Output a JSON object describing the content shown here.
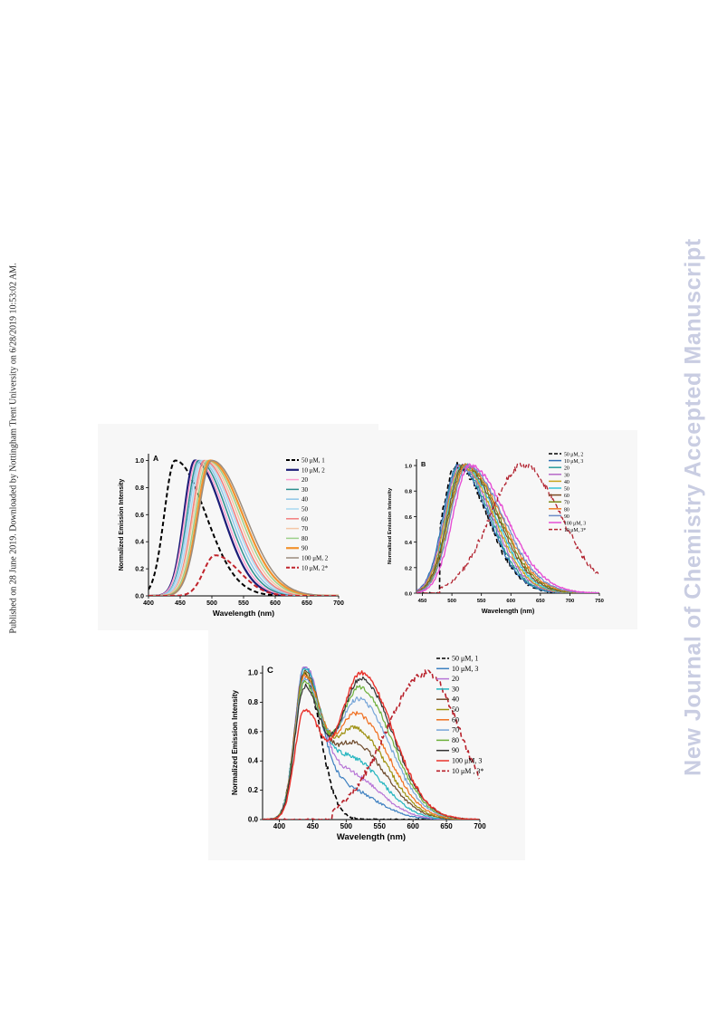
{
  "page": {
    "sidebar_text": "Published on 28 June 2019. Downloaded by Nottingham Trent University on 6/28/2019 10:53:02 AM.",
    "watermark": "New Journal of Chemistry Accepted Manuscript"
  },
  "chart_data": [
    {
      "type": "line",
      "panel": "A",
      "xlabel": "Wavelength (nm)",
      "ylabel": "Normalized Emission Intensity",
      "xlim": [
        400,
        700
      ],
      "ylim": [
        0,
        1.05
      ],
      "xticks": [
        400,
        450,
        500,
        550,
        600,
        650,
        700
      ],
      "yticks": [
        "0.0",
        "0.2",
        "0.4",
        "0.6",
        "0.8",
        "1.0"
      ],
      "legend_position": "top-right",
      "series": [
        {
          "name": "50 μM, 1",
          "color": "#000000",
          "dash": true,
          "width": 2,
          "peak": 442,
          "sl": 17,
          "sr": 48,
          "amp": 1.0
        },
        {
          "name": "10 μM, 2",
          "color": "#1b1d78",
          "dash": false,
          "width": 2.2,
          "peak": 473,
          "sl": 17,
          "sr": 44,
          "amp": 1.0
        },
        {
          "name": "20",
          "color": "#ff9fd0",
          "dash": false,
          "width": 1.5,
          "peak": 476,
          "sl": 18,
          "sr": 45,
          "amp": 1.0
        },
        {
          "name": "30",
          "color": "#2c8e8e",
          "dash": false,
          "width": 1.5,
          "peak": 479,
          "sl": 18,
          "sr": 46,
          "amp": 1.0
        },
        {
          "name": "40",
          "color": "#8ec6e8",
          "dash": false,
          "width": 1.5,
          "peak": 482,
          "sl": 19,
          "sr": 47,
          "amp": 1.0
        },
        {
          "name": "50",
          "color": "#a9d8f0",
          "dash": false,
          "width": 1.5,
          "peak": 485,
          "sl": 19,
          "sr": 48,
          "amp": 1.0
        },
        {
          "name": "60",
          "color": "#f37d7d",
          "dash": false,
          "width": 1.5,
          "peak": 488,
          "sl": 19,
          "sr": 48,
          "amp": 1.0
        },
        {
          "name": "70",
          "color": "#f4c6a6",
          "dash": false,
          "width": 1.5,
          "peak": 491,
          "sl": 20,
          "sr": 49,
          "amp": 1.0
        },
        {
          "name": "80",
          "color": "#9cd08a",
          "dash": false,
          "width": 1.5,
          "peak": 494,
          "sl": 20,
          "sr": 50,
          "amp": 1.0
        },
        {
          "name": "90",
          "color": "#f2932f",
          "dash": false,
          "width": 2.2,
          "peak": 497,
          "sl": 20,
          "sr": 51,
          "amp": 1.0
        },
        {
          "name": "100 μM, 2",
          "color": "#9a8c7e",
          "dash": false,
          "width": 1.5,
          "peak": 500,
          "sl": 21,
          "sr": 52,
          "amp": 1.0
        },
        {
          "name": "10 μM, 2*",
          "color": "#c0232b",
          "dash": true,
          "width": 2,
          "peak": 505,
          "sl": 18,
          "sr": 38,
          "amp": 0.3
        }
      ]
    },
    {
      "type": "line",
      "panel": "B",
      "xlabel": "Wavelength (nm)",
      "ylabel": "Normalized Emission Intensity",
      "xlim": [
        440,
        750
      ],
      "ylim": [
        0,
        1.05
      ],
      "xticks": [
        450,
        500,
        550,
        600,
        650,
        700,
        750
      ],
      "yticks": [
        "0.0",
        "0.2",
        "0.4",
        "0.6",
        "0.8",
        "1.0"
      ],
      "legend_position": "top-right",
      "series": [
        {
          "name": "50 μM, 2",
          "color": "#000000",
          "dash": true,
          "width": 1.6,
          "peak": 508,
          "sl": 25,
          "sr": 52,
          "amp": 1.0
        },
        {
          "name": "10 μM, 3",
          "color": "#2f6fb7",
          "dash": false,
          "width": 1.2,
          "peak": 510,
          "sl": 25,
          "sr": 52,
          "amp": 1.0
        },
        {
          "name": "20",
          "color": "#2a9c9c",
          "dash": false,
          "width": 1.2,
          "peak": 512,
          "sl": 25,
          "sr": 53,
          "amp": 1.0
        },
        {
          "name": "30",
          "color": "#b668c8",
          "dash": false,
          "width": 1.2,
          "peak": 514,
          "sl": 26,
          "sr": 54,
          "amp": 1.0
        },
        {
          "name": "40",
          "color": "#c7a51c",
          "dash": false,
          "width": 1.2,
          "peak": 516,
          "sl": 26,
          "sr": 55,
          "amp": 1.0
        },
        {
          "name": "50",
          "color": "#37c3d6",
          "dash": false,
          "width": 1.2,
          "peak": 518,
          "sl": 26,
          "sr": 56,
          "amp": 1.0
        },
        {
          "name": "60",
          "color": "#7b4a23",
          "dash": false,
          "width": 1.2,
          "peak": 520,
          "sl": 27,
          "sr": 57,
          "amp": 1.0
        },
        {
          "name": "70",
          "color": "#7c8a18",
          "dash": false,
          "width": 1.2,
          "peak": 522,
          "sl": 27,
          "sr": 58,
          "amp": 1.0
        },
        {
          "name": "80",
          "color": "#ee7d27",
          "dash": false,
          "width": 1.2,
          "peak": 524,
          "sl": 27,
          "sr": 59,
          "amp": 1.0
        },
        {
          "name": "90",
          "color": "#6d8cc8",
          "dash": false,
          "width": 1.2,
          "peak": 526,
          "sl": 28,
          "sr": 60,
          "amp": 1.0
        },
        {
          "name": "100 μM, 3",
          "color": "#e64fd4",
          "dash": false,
          "width": 1.4,
          "peak": 530,
          "sl": 28,
          "sr": 62,
          "amp": 1.0
        },
        {
          "name": "10 μM, 3*",
          "color": "#b22330",
          "dash": true,
          "width": 1.3,
          "peak": 620,
          "sl": 55,
          "sr": 65,
          "amp": 1.0
        }
      ]
    },
    {
      "type": "line",
      "panel": "C",
      "xlabel": "Wavelength (nm)",
      "ylabel": "Normalized Emission Intensity",
      "xlim": [
        375,
        700
      ],
      "ylim": [
        0,
        1.05
      ],
      "xticks": [
        400,
        450,
        500,
        550,
        600,
        650,
        700
      ],
      "yticks": [
        "0.0",
        "0.2",
        "0.4",
        "0.6",
        "0.8",
        "1.0"
      ],
      "legend_position": "top-right",
      "series": [
        {
          "name": "50 μM, 1",
          "color": "#000000",
          "dash": true,
          "width": 1.6,
          "p1": 437,
          "a1": 1.0,
          "p2": 490,
          "a2": 0.0
        },
        {
          "name": "10 μM, 3",
          "color": "#3c7fc0",
          "dash": false,
          "width": 1.2,
          "p1": 437,
          "a1": 1.0,
          "p2": 495,
          "a2": 0.22
        },
        {
          "name": "20",
          "color": "#b774d6",
          "dash": false,
          "width": 1.2,
          "p1": 437,
          "a1": 1.0,
          "p2": 500,
          "a2": 0.32
        },
        {
          "name": "30",
          "color": "#24b5bf",
          "dash": false,
          "width": 1.2,
          "p1": 437,
          "a1": 0.98,
          "p2": 505,
          "a2": 0.42
        },
        {
          "name": "40",
          "color": "#6e4a2b",
          "dash": false,
          "width": 1.2,
          "p1": 437,
          "a1": 0.97,
          "p2": 510,
          "a2": 0.52
        },
        {
          "name": "50",
          "color": "#9e9010",
          "dash": false,
          "width": 1.2,
          "p1": 437,
          "a1": 0.95,
          "p2": 512,
          "a2": 0.62
        },
        {
          "name": "60",
          "color": "#f06e1e",
          "dash": false,
          "width": 1.2,
          "p1": 437,
          "a1": 0.94,
          "p2": 515,
          "a2": 0.72
        },
        {
          "name": "70",
          "color": "#76a5d8",
          "dash": false,
          "width": 1.2,
          "p1": 437,
          "a1": 0.92,
          "p2": 518,
          "a2": 0.82
        },
        {
          "name": "80",
          "color": "#6cb03a",
          "dash": false,
          "width": 1.2,
          "p1": 437,
          "a1": 0.9,
          "p2": 520,
          "a2": 0.9
        },
        {
          "name": "90",
          "color": "#333333",
          "dash": false,
          "width": 1.2,
          "p1": 437,
          "a1": 0.88,
          "p2": 522,
          "a2": 0.96
        },
        {
          "name": "100 μM, 3",
          "color": "#e8322c",
          "dash": false,
          "width": 1.4,
          "p1": 437,
          "a1": 0.72,
          "p2": 522,
          "a2": 1.0
        },
        {
          "name": "10 μM , 3*",
          "color": "#b8202a",
          "dash": true,
          "width": 1.6,
          "p1": 620,
          "a1": 1.0,
          "p2": 620,
          "a2": 0.0
        }
      ]
    }
  ]
}
